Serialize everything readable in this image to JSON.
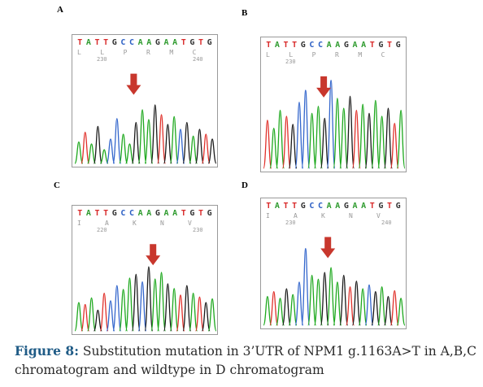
{
  "panels": [
    {
      "label": "A",
      "bases": "TATTGCCAAGAATGTG",
      "aa_letters": [
        "L",
        "L",
        "P",
        "R",
        "M",
        "C"
      ],
      "positions": [
        "230",
        "240"
      ],
      "peaks": [
        0.22,
        0.32,
        0.2,
        0.38,
        0.14,
        0.25,
        0.46,
        0.3,
        0.2,
        0.42,
        0.55,
        0.45,
        0.6,
        0.5,
        0.4,
        0.48,
        0.35,
        0.42,
        0.28,
        0.35,
        0.3,
        0.25
      ],
      "colors": [
        "#1da81d",
        "#e0302a",
        "#1da81d",
        "#1a1a1a",
        "#1da81d",
        "#3366cc",
        "#3366cc",
        "#1da81d",
        "#1da81d",
        "#1a1a1a",
        "#1da81d",
        "#1da81d",
        "#1a1a1a",
        "#e0302a",
        "#1a1a1a",
        "#1da81d",
        "#3366cc",
        "#1a1a1a",
        "#1da81d",
        "#1a1a1a",
        "#e0302a",
        "#1a1a1a"
      ],
      "arrow_at": 0.42
    },
    {
      "label": "B",
      "bases": "TATTGCCAAGAATGTG",
      "aa_letters": [
        "L",
        "L",
        "P",
        "R",
        "M",
        "C"
      ],
      "positions": [
        "230"
      ],
      "peaks": [
        0.48,
        0.4,
        0.58,
        0.52,
        0.44,
        0.66,
        0.78,
        0.55,
        0.62,
        0.5,
        0.88,
        0.7,
        0.6,
        0.72,
        0.58,
        0.64,
        0.55,
        0.68,
        0.52,
        0.6,
        0.45,
        0.58
      ],
      "colors": [
        "#e0302a",
        "#1da81d",
        "#1da81d",
        "#e0302a",
        "#1a1a1a",
        "#3366cc",
        "#3366cc",
        "#1da81d",
        "#1da81d",
        "#1a1a1a",
        "#3366cc",
        "#1da81d",
        "#1da81d",
        "#1a1a1a",
        "#e0302a",
        "#1da81d",
        "#1a1a1a",
        "#1da81d",
        "#1da81d",
        "#1a1a1a",
        "#e0302a",
        "#1da81d"
      ],
      "arrow_at": 0.43
    },
    {
      "label": "C",
      "bases": "TATTGCCAAGAATGTG",
      "aa_letters": [
        "I",
        "A",
        "K",
        "N",
        "V"
      ],
      "positions": [
        "220",
        "230"
      ],
      "peaks": [
        0.3,
        0.28,
        0.35,
        0.22,
        0.4,
        0.32,
        0.48,
        0.44,
        0.56,
        0.6,
        0.52,
        0.68,
        0.55,
        0.62,
        0.5,
        0.45,
        0.38,
        0.48,
        0.4,
        0.36,
        0.3,
        0.34
      ],
      "colors": [
        "#1da81d",
        "#e0302a",
        "#1da81d",
        "#1a1a1a",
        "#e0302a",
        "#3366cc",
        "#3366cc",
        "#1da81d",
        "#1da81d",
        "#1a1a1a",
        "#3366cc",
        "#1a1a1a",
        "#1da81d",
        "#1da81d",
        "#1a1a1a",
        "#1da81d",
        "#e0302a",
        "#1a1a1a",
        "#1da81d",
        "#e0302a",
        "#1a1a1a",
        "#1da81d"
      ],
      "arrow_at": 0.56
    },
    {
      "label": "D",
      "bases": "TATTGCCAAGAATGTG",
      "aa_letters": [
        "I",
        "A",
        "K",
        "N",
        "V"
      ],
      "positions": [
        "230",
        "240"
      ],
      "peaks": [
        0.3,
        0.35,
        0.28,
        0.38,
        0.32,
        0.45,
        0.8,
        0.52,
        0.48,
        0.55,
        0.6,
        0.45,
        0.52,
        0.4,
        0.46,
        0.38,
        0.42,
        0.35,
        0.4,
        0.3,
        0.36,
        0.28
      ],
      "colors": [
        "#1da81d",
        "#e0302a",
        "#1da81d",
        "#1a1a1a",
        "#1da81d",
        "#3366cc",
        "#3366cc",
        "#1da81d",
        "#1da81d",
        "#1a1a1a",
        "#1da81d",
        "#1da81d",
        "#1a1a1a",
        "#e0302a",
        "#1a1a1a",
        "#1da81d",
        "#3366cc",
        "#1a1a1a",
        "#1da81d",
        "#1a1a1a",
        "#e0302a",
        "#1da81d"
      ],
      "arrow_at": 0.46
    }
  ],
  "base_colors": {
    "A": "#2e9b2e",
    "T": "#d92b2b",
    "G": "#333333",
    "C": "#2b5fc4"
  },
  "arrow_color": "#c8372d",
  "caption": {
    "figure_label": "Figure 8:",
    "text": " Substitution mutation in 3’UTR of NPM1 g.1163A>T in A,B,C chromatogram and wildtype in D chromatogram"
  }
}
